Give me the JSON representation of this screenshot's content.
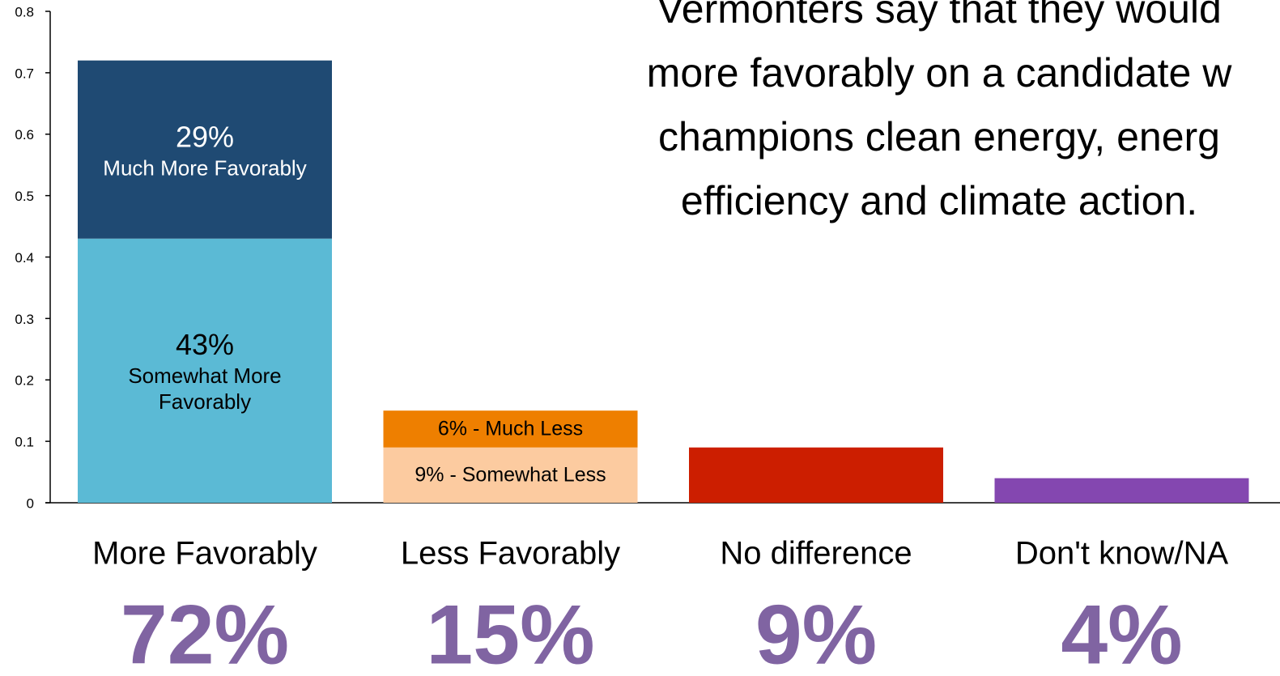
{
  "chart_data": {
    "type": "stacked_bar",
    "title_lines": [
      "Vermonters say that they would",
      "more favorably on a candidate w",
      "champions clean energy, energ",
      "efficiency and climate action."
    ],
    "ylim": [
      0,
      0.8
    ],
    "yticks": [
      0,
      0.1,
      0.2,
      0.3,
      0.4,
      0.5,
      0.6,
      0.7,
      0.8
    ],
    "bars": [
      {
        "category": "More Favorably",
        "total_label": "72%",
        "segments": [
          {
            "value": 0.43,
            "value_label": "43%",
            "name": "Somewhat More Favorably",
            "color": "#5bbad5"
          },
          {
            "value": 0.29,
            "value_label": "29%",
            "name": "Much More Favorably",
            "color": "#1f4a73"
          }
        ]
      },
      {
        "category": "Less Favorably",
        "total_label": "15%",
        "segments": [
          {
            "value": 0.09,
            "label": "9% - Somewhat Less",
            "color": "#fccba0"
          },
          {
            "value": 0.06,
            "label": "6% - Much Less",
            "color": "#ee7f00"
          }
        ]
      },
      {
        "category": "No difference",
        "total_label": "9%",
        "segments": [
          {
            "value": 0.09,
            "color": "#cc1e00"
          }
        ]
      },
      {
        "category": "Don't know/NA",
        "total_label": "4%",
        "segments": [
          {
            "value": 0.04,
            "color": "#8447b0"
          }
        ]
      }
    ],
    "total_label_color": "#8064a2"
  }
}
